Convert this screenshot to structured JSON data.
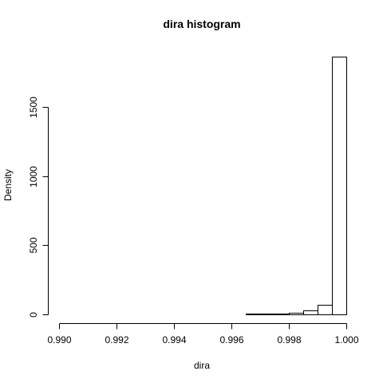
{
  "chart_data": {
    "type": "bar",
    "title": "dira  histogram",
    "xlabel": "dira",
    "ylabel": "Density",
    "xlim": [
      0.99,
      1.0
    ],
    "ylim": [
      0,
      1875
    ],
    "x_ticks": [
      0.99,
      0.992,
      0.994,
      0.996,
      0.998,
      1.0
    ],
    "x_tick_labels": [
      "0.990",
      "0.992",
      "0.994",
      "0.996",
      "0.998",
      "1.000"
    ],
    "y_ticks": [
      0,
      500,
      1000,
      1500
    ],
    "y_tick_labels": [
      "0",
      "500",
      "1000",
      "1500"
    ],
    "grid": false,
    "legend": "none",
    "bin_edges": [
      0.99,
      0.9905,
      0.991,
      0.9915,
      0.992,
      0.9925,
      0.993,
      0.9935,
      0.994,
      0.9945,
      0.995,
      0.9955,
      0.996,
      0.9965,
      0.997,
      0.9975,
      0.998,
      0.9985,
      0.999,
      0.9995,
      1.0
    ],
    "values": [
      0.5,
      0.5,
      0.5,
      0.5,
      0.5,
      0.5,
      0.5,
      0.5,
      1,
      1,
      1,
      1,
      2,
      3,
      4,
      7,
      12,
      28,
      72,
      1865
    ]
  }
}
